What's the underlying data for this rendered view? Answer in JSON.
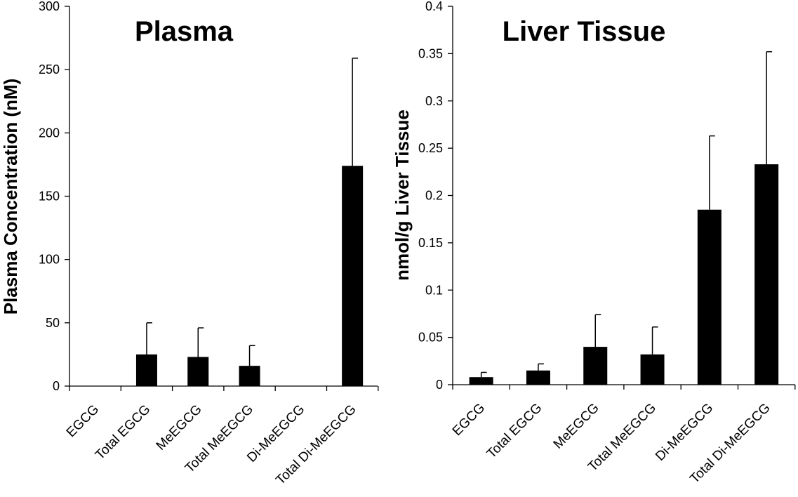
{
  "chart_data": [
    {
      "type": "bar",
      "title": "Plasma",
      "xlabel": "",
      "ylabel": "Plasma Concentration (nM)",
      "ylim": [
        0,
        300
      ],
      "yticks": [
        "0",
        "50",
        "100",
        "150",
        "200",
        "250",
        "300"
      ],
      "categories": [
        "EGCG",
        "Total EGCG",
        "MeEGCG",
        "Total MeEGCG",
        "Di-MeEGCG",
        "Total Di-MeEGCG"
      ],
      "values": [
        0,
        25,
        23,
        16,
        0,
        174
      ],
      "errors": [
        0,
        25,
        23,
        16,
        0,
        85
      ],
      "bar_color": "#000000",
      "grid": false
    },
    {
      "type": "bar",
      "title": "Liver Tissue",
      "xlabel": "",
      "ylabel": "nmol/g Liver Tissue",
      "ylim": [
        0,
        0.4
      ],
      "yticks": [
        "0",
        "0.05",
        "0.1",
        "0.15",
        "0.2",
        "0.25",
        "0.3",
        "0.35",
        "0.4"
      ],
      "categories": [
        "EGCG",
        "Total EGCG",
        "MeEGCG",
        "Total MeEGCG",
        "Di-MeEGCG",
        "Total Di-MeEGCG"
      ],
      "values": [
        0.008,
        0.015,
        0.04,
        0.032,
        0.185,
        0.233
      ],
      "errors": [
        0.005,
        0.007,
        0.034,
        0.029,
        0.078,
        0.119
      ],
      "bar_color": "#000000",
      "grid": false
    }
  ]
}
